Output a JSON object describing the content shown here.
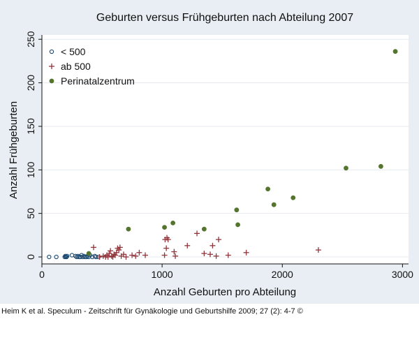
{
  "chart_data": {
    "type": "scatter",
    "title": "Geburten versus Frühgeburten nach Abteilung 2007",
    "xlabel": "Anzahl Geburten pro Abteilung",
    "ylabel": "Anzahl Frühgeburten",
    "xlim": [
      0,
      3050
    ],
    "ylim": [
      -8,
      255
    ],
    "xticks": [
      0,
      1000,
      2000,
      3000
    ],
    "yticks": [
      0,
      50,
      100,
      150,
      200,
      250
    ],
    "grid": "horizontal",
    "legend_position": "top-left",
    "series": [
      {
        "name": "< 500",
        "marker": "open-circle",
        "color": "#1a476f",
        "x": [
          60,
          120,
          190,
          195,
          200,
          205,
          210,
          250,
          280,
          290,
          300,
          310,
          320,
          330,
          340,
          350,
          360,
          370,
          380,
          390,
          400,
          420,
          440,
          450,
          470
        ],
        "y": [
          0,
          0,
          0,
          1,
          0,
          0,
          1,
          2,
          1,
          0,
          1,
          0,
          0,
          2,
          0,
          1,
          0,
          0,
          1,
          0,
          2,
          0,
          1,
          0,
          0
        ]
      },
      {
        "name": "ab 500",
        "marker": "plus",
        "color": "#90353b",
        "x": [
          430,
          480,
          510,
          530,
          540,
          550,
          560,
          570,
          580,
          590,
          600,
          610,
          620,
          630,
          640,
          650,
          660,
          680,
          700,
          750,
          780,
          810,
          860,
          1020,
          1025,
          1035,
          1040,
          1050,
          1100,
          1110,
          1210,
          1290,
          1350,
          1400,
          1420,
          1450,
          1470,
          1550,
          1700,
          2300
        ],
        "y": [
          11,
          0,
          1,
          0,
          2,
          0,
          4,
          7,
          1,
          0,
          3,
          2,
          5,
          10,
          8,
          11,
          1,
          3,
          0,
          2,
          1,
          5,
          2,
          2,
          20,
          10,
          22,
          20,
          6,
          1,
          13,
          27,
          4,
          3,
          13,
          1,
          20,
          2,
          5,
          8
        ]
      },
      {
        "name": "Perinatalzentrum",
        "marker": "filled-circle",
        "color": "#55752f",
        "x": [
          390,
          720,
          1020,
          1090,
          1350,
          1620,
          1630,
          1880,
          1930,
          2090,
          2530,
          2820,
          2940
        ],
        "y": [
          4,
          32,
          34,
          39,
          32,
          54,
          37,
          78,
          60,
          68,
          102,
          104,
          236
        ]
      }
    ]
  },
  "credit": "Heim K et al. Speculum - Zeitschrift für Gynäkologie und Geburtshilfe 2009; 27 (2): 4-7 ©"
}
